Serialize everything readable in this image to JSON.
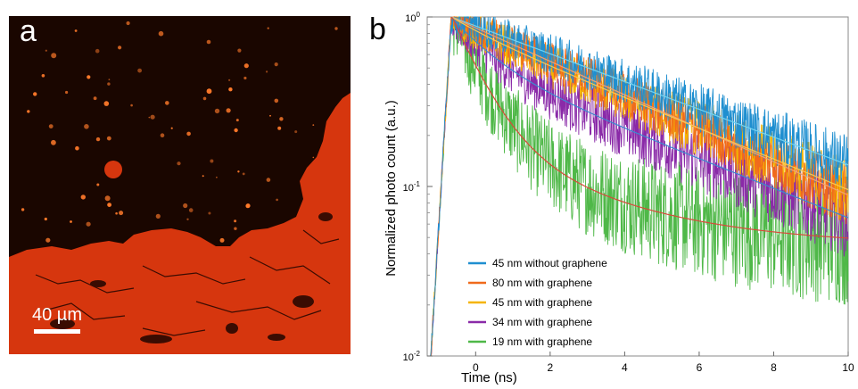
{
  "panel_a": {
    "label": "a",
    "scale_bar_label": "40 µm",
    "colors": {
      "background": "#1a0600",
      "material": "#d6360e",
      "dots": "#ff7a2a"
    }
  },
  "panel_b": {
    "label": "b"
  },
  "chart_data": {
    "type": "line",
    "xlabel": "Time (ns)",
    "ylabel": "Normalized photo count (a.u.)",
    "xlim": [
      -1.3,
      10
    ],
    "ylim": [
      0.01,
      1
    ],
    "yscale": "log",
    "x_ticks": [
      0,
      2,
      4,
      6,
      8,
      10
    ],
    "y_ticks": [
      {
        "value": 0.01,
        "label": "10-2",
        "base": "10",
        "exp": "-2"
      },
      {
        "value": 0.1,
        "label": "10-1",
        "base": "10",
        "exp": "-1"
      },
      {
        "value": 1,
        "label": "100",
        "base": "10",
        "exp": "0"
      }
    ],
    "legend_position": "bottom-left",
    "rise_time_ns": -0.65,
    "series": [
      {
        "name": "45 nm without graphene",
        "color": "#1f8fd0",
        "fit_color": "#6fd3f0",
        "tau1": 5.3,
        "a1": 1.0,
        "tau2": 1.0,
        "a2": 0.0,
        "offset": 0.0,
        "noise": 0.1
      },
      {
        "name": "80 nm with graphene",
        "color": "#f06a1c",
        "fit_color": "#f2a070",
        "tau1": 4.4,
        "a1": 1.0,
        "tau2": 1.0,
        "a2": 0.0,
        "offset": 0.0,
        "noise": 0.1
      },
      {
        "name": "45 nm with graphene",
        "color": "#f5b400",
        "fit_color": "#f8c850",
        "tau1": 4.8,
        "a1": 0.88,
        "tau2": 1.0,
        "a2": 0.12,
        "offset": 0.0,
        "noise": 0.11
      },
      {
        "name": "34 nm with graphene",
        "color": "#8a2aa8",
        "fit_color": "#3a8ad0",
        "tau1": 5.0,
        "a1": 0.55,
        "tau2": 1.0,
        "a2": 0.45,
        "offset": 0.0,
        "noise": 0.13
      },
      {
        "name": "19 nm with graphene",
        "color": "#4fb848",
        "fit_color": "#d84a3a",
        "tau1": 3.0,
        "a1": 0.16,
        "tau2": 0.75,
        "a2": 0.82,
        "offset": 0.045,
        "noise": 0.22
      }
    ]
  }
}
